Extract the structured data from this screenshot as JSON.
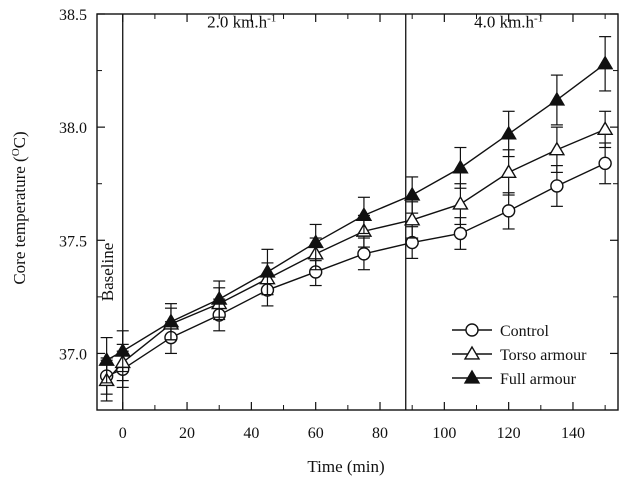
{
  "chart_data": {
    "type": "line",
    "xlabel": "Time (min)",
    "ylabel": "Core temperature (°C)",
    "xlim": [
      -8,
      154
    ],
    "ylim": [
      36.75,
      38.5
    ],
    "xticks": [
      0,
      20,
      40,
      60,
      80,
      100,
      120,
      140
    ],
    "yticks": [
      37.0,
      37.5,
      38.0,
      38.5
    ],
    "ytick_labels": [
      "37.0",
      "37.5",
      "38.0",
      "38.5"
    ],
    "phase_lines": [
      0,
      88
    ],
    "phase_labels": [
      {
        "text": "Baseline",
        "x": -3,
        "y": 37.36,
        "rotate": true
      },
      {
        "text": "2.0 km.h",
        "sup": "-1",
        "x": 37,
        "y": 38.44
      },
      {
        "text": "4.0 km.h",
        "sup": "-1",
        "x": 120,
        "y": 38.44
      }
    ],
    "legend_position": "bottom-right",
    "series": [
      {
        "name": "Control",
        "marker": "circle-open",
        "x": [
          -5,
          0,
          15,
          30,
          45,
          60,
          75,
          90,
          105,
          120,
          135,
          150
        ],
        "y": [
          36.9,
          36.93,
          37.07,
          37.17,
          37.28,
          37.36,
          37.44,
          37.49,
          37.53,
          37.63,
          37.74,
          37.84
        ],
        "err": [
          0.08,
          0.08,
          0.07,
          0.07,
          0.07,
          0.06,
          0.07,
          0.07,
          0.07,
          0.08,
          0.09,
          0.09
        ]
      },
      {
        "name": "Torso armour",
        "marker": "triangle-open",
        "x": [
          -5,
          0,
          15,
          30,
          45,
          60,
          75,
          90,
          105,
          120,
          135,
          150
        ],
        "y": [
          36.88,
          36.96,
          37.13,
          37.22,
          37.33,
          37.44,
          37.54,
          37.59,
          37.66,
          37.8,
          37.9,
          37.99
        ],
        "err": [
          0.09,
          0.08,
          0.07,
          0.07,
          0.07,
          0.07,
          0.07,
          0.08,
          0.09,
          0.1,
          0.1,
          0.08
        ]
      },
      {
        "name": "Full armour",
        "marker": "triangle-filled",
        "x": [
          -5,
          0,
          15,
          30,
          45,
          60,
          75,
          90,
          105,
          120,
          135,
          150
        ],
        "y": [
          36.97,
          37.01,
          37.14,
          37.24,
          37.36,
          37.49,
          37.61,
          37.7,
          37.82,
          37.97,
          38.12,
          38.28
        ],
        "err": [
          0.1,
          0.09,
          0.08,
          0.08,
          0.1,
          0.08,
          0.08,
          0.08,
          0.09,
          0.1,
          0.11,
          0.12
        ]
      }
    ]
  }
}
